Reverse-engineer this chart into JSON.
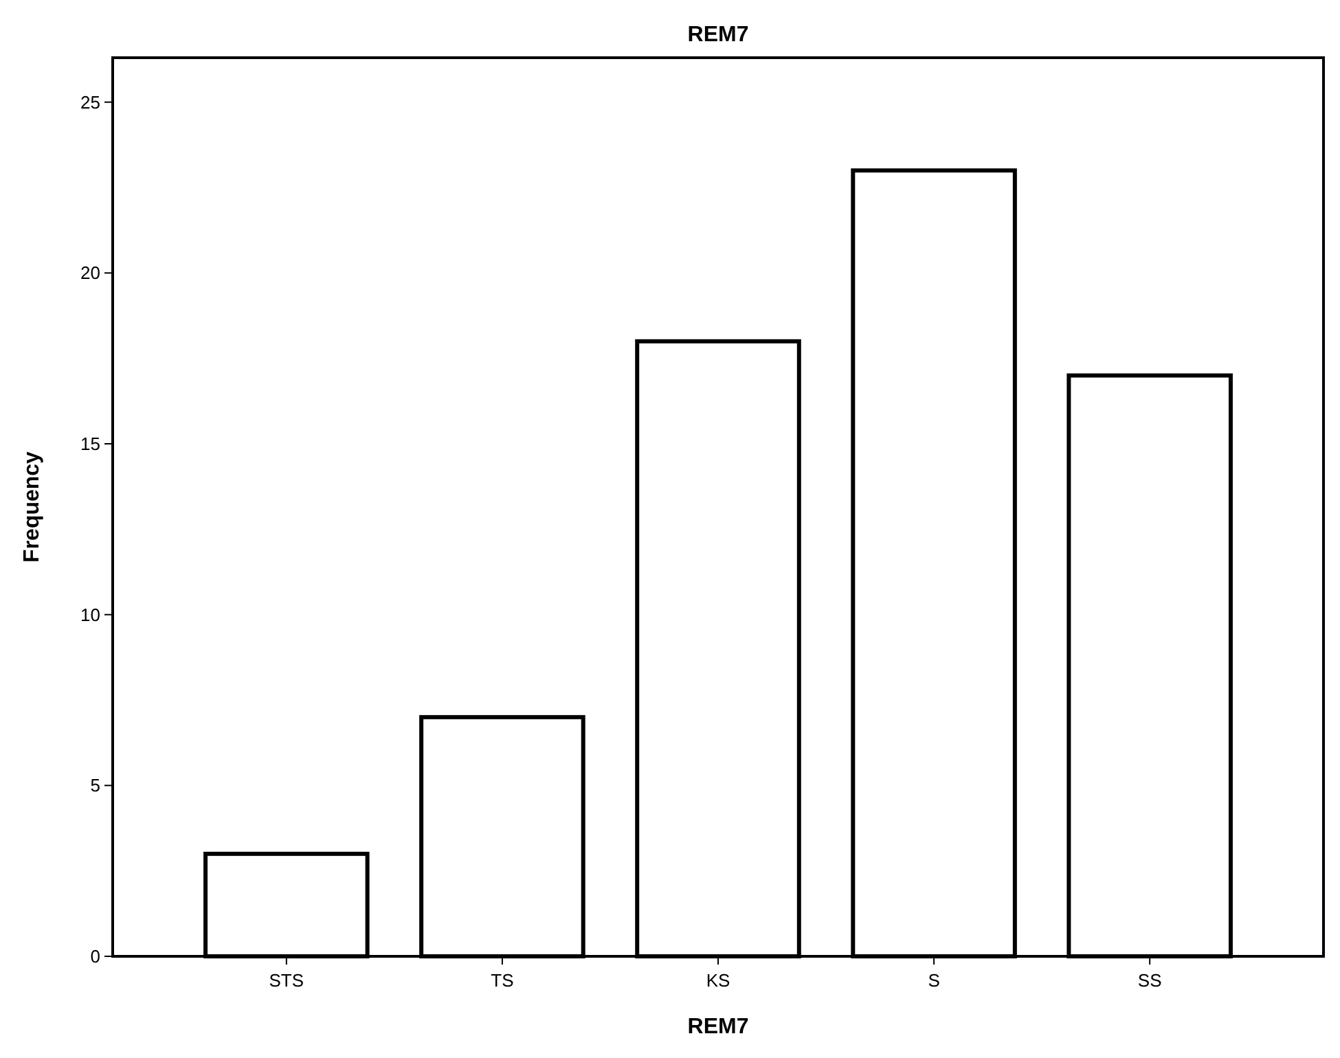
{
  "chart_data": {
    "type": "bar",
    "title": "REM7",
    "xlabel": "REM7",
    "ylabel": "Frequency",
    "categories": [
      "STS",
      "TS",
      "KS",
      "S",
      "SS"
    ],
    "values": [
      3,
      7,
      18,
      23,
      17
    ],
    "color": "#ffffff",
    "ylim": [
      0,
      26.3
    ],
    "yticks": [
      0,
      5,
      10,
      15,
      20,
      25
    ],
    "grid": false
  }
}
